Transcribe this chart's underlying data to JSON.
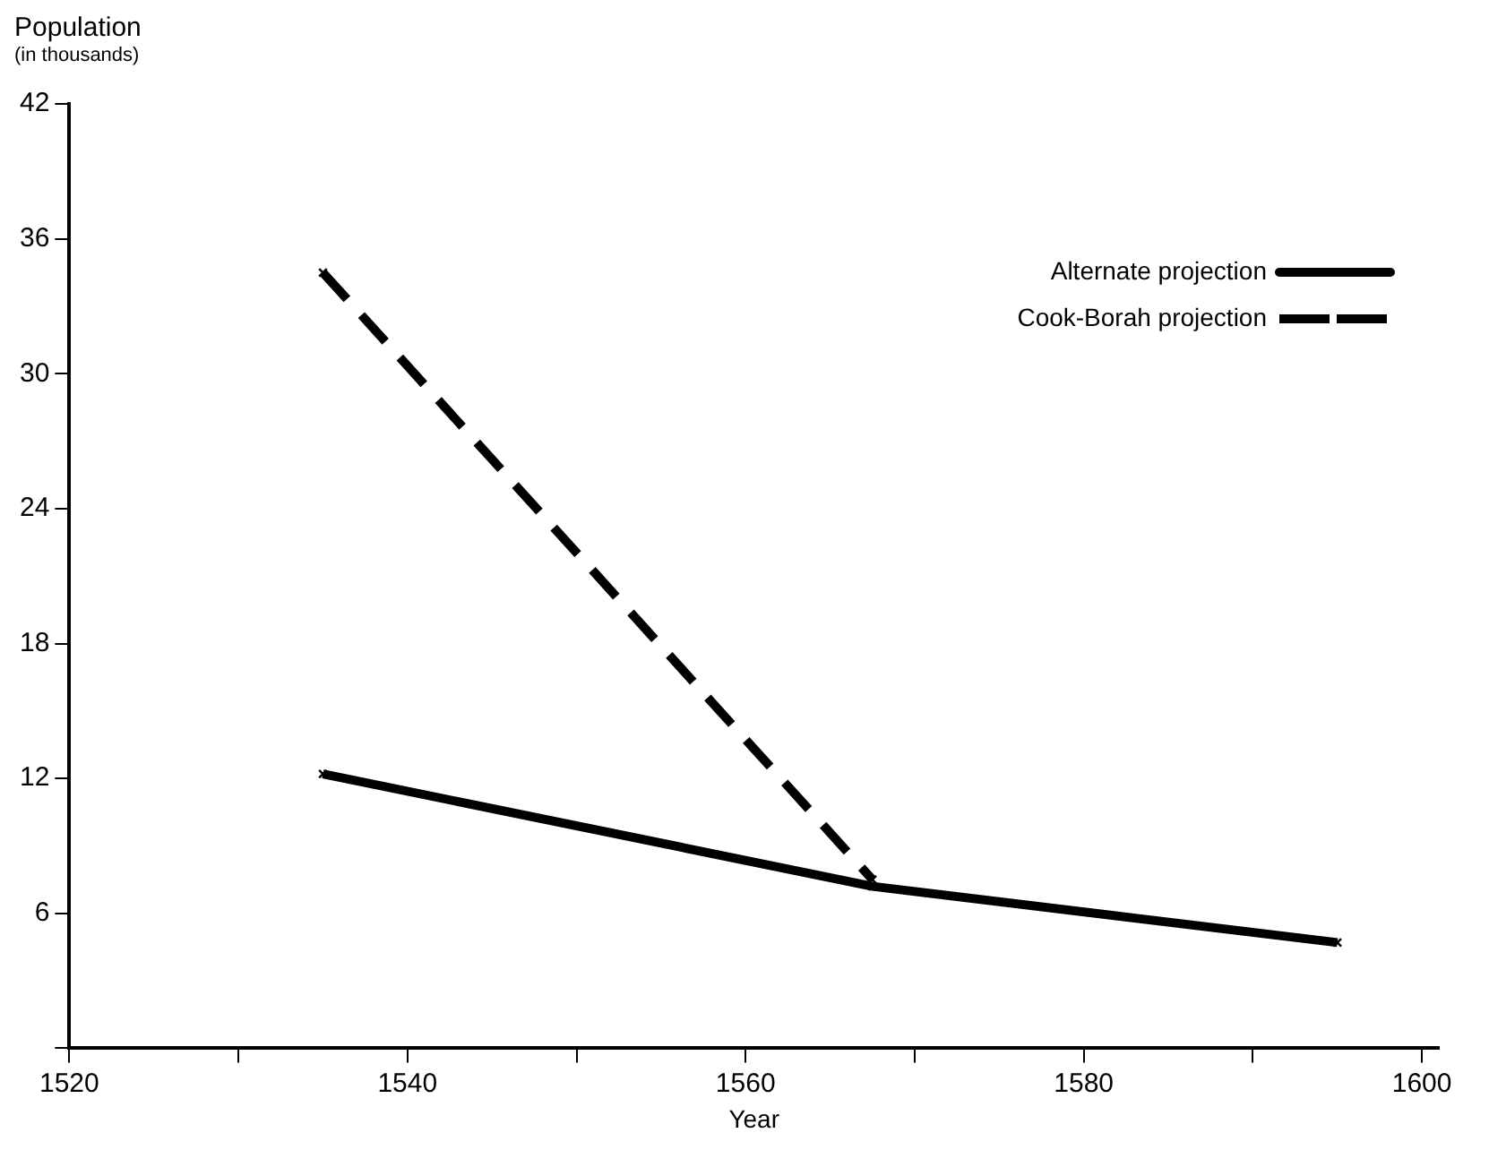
{
  "chart_data": {
    "type": "line",
    "xlabel": "Year",
    "ylabel": "Population\n(in thousands)",
    "xlim": [
      1520,
      1601
    ],
    "xticks": [
      1520,
      {
        "value": 1530,
        "label": null
      },
      1540,
      {
        "value": 1550,
        "label": null
      },
      1560,
      {
        "value": 1570,
        "label": null
      },
      1580,
      {
        "value": 1590,
        "label": null
      },
      1600
    ],
    "ylim": [
      0,
      42
    ],
    "yticks": [
      {
        "value": 0,
        "label": null
      },
      6,
      12,
      18,
      24,
      30,
      36,
      42
    ],
    "grid": false,
    "legend": "top right",
    "marker": "cross",
    "series": [
      {
        "name": "Cook-Borah projection",
        "color": "#000000",
        "line_style": "dashed",
        "x": [
          1535,
          1567.5
        ],
        "values": [
          34.5,
          7.5
        ]
      },
      {
        "name": "Alternate projection",
        "color": "#000000",
        "line_style": "solid",
        "x": [
          1535,
          1567.5,
          1595
        ],
        "values": [
          12.2,
          7.2,
          4.7
        ]
      }
    ]
  }
}
